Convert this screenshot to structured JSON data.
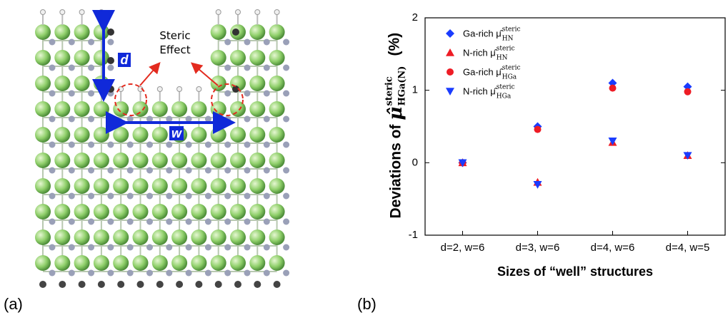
{
  "panels": {
    "a_label": "(a)",
    "b_label": "(b)",
    "annotation": "Steric Effect",
    "d_label": "d",
    "w_label": "w"
  },
  "chart_data": {
    "type": "scatter",
    "ylabel": {
      "text": "Deviations of",
      "symbol": "μ̂",
      "subscript": "HGa(N)",
      "superscript": "steric",
      "unit": "(%)"
    },
    "xlabel": "Sizes of “well” structures",
    "categories": [
      "d=2, w=6",
      "d=3, w=6",
      "d=4, w=6",
      "d=4, w=5"
    ],
    "ylim": [
      -1,
      2
    ],
    "yticks": [
      -1,
      0,
      1,
      2
    ],
    "legend": "upper left",
    "series": [
      {
        "name": "Ga-rich μ̂",
        "subscript": "HN",
        "superscript": "steric",
        "color": "#1a3cff",
        "marker": "diamond",
        "values": [
          0,
          0.5,
          1.1,
          1.05
        ]
      },
      {
        "name": "N-rich μ̂",
        "subscript": "HN",
        "superscript": "steric",
        "color": "#ee1c25",
        "marker": "triangle",
        "values": [
          0,
          -0.27,
          0.28,
          0.1
        ]
      },
      {
        "name": "Ga-rich μ̂",
        "subscript": "HGa",
        "superscript": "steric",
        "color": "#ee1c25",
        "marker": "circle",
        "values": [
          0,
          0.46,
          1.03,
          0.98
        ]
      },
      {
        "name": "N-rich μ̂",
        "subscript": "HGa",
        "superscript": "steric",
        "color": "#1a3cff",
        "marker": "triangle-down",
        "values": [
          0,
          -0.3,
          0.3,
          0.1
        ]
      }
    ]
  }
}
